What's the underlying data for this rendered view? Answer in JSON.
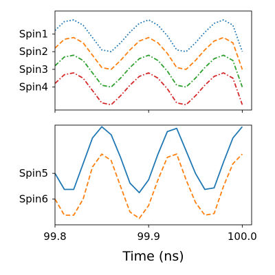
{
  "chart_data": [
    {
      "type": "line",
      "panel": "top",
      "xlim": [
        99.8,
        100.01
      ],
      "ylim": [
        -5.3,
        0.3
      ],
      "x": [
        99.8,
        99.81,
        99.82,
        99.83,
        99.84,
        99.85,
        99.86,
        99.87,
        99.88,
        99.89,
        99.9,
        99.91,
        99.92,
        99.93,
        99.94,
        99.95,
        99.96,
        99.97,
        99.98,
        99.99,
        100.0
      ],
      "ytick_labels": [
        "Spin1",
        "Spin2",
        "Spin3",
        "Spin4"
      ],
      "ytick_values": [
        -1,
        -2,
        -3,
        -4
      ],
      "series": [
        {
          "label": "Spin1",
          "color": "#1f77b4",
          "dash": "dotted",
          "values": [
            -0.8,
            -0.3,
            -0.2,
            -0.5,
            -1.2,
            -1.9,
            -2.0,
            -1.5,
            -0.9,
            -0.4,
            -0.2,
            -0.5,
            -1.1,
            -1.9,
            -2.0,
            -1.5,
            -0.9,
            -0.4,
            -0.2,
            -0.5,
            -2.0
          ]
        },
        {
          "label": "Spin2",
          "color": "#ff7f0e",
          "dash": "dashed",
          "values": [
            -1.8,
            -1.3,
            -1.2,
            -1.5,
            -2.2,
            -2.9,
            -3.0,
            -2.5,
            -1.9,
            -1.4,
            -1.2,
            -1.5,
            -2.1,
            -2.9,
            -3.0,
            -2.5,
            -1.9,
            -1.4,
            -1.2,
            -1.5,
            -3.0
          ]
        },
        {
          "label": "Spin3",
          "color": "#2ca02c",
          "dash": "dashdot",
          "values": [
            -2.8,
            -2.3,
            -2.2,
            -2.5,
            -3.2,
            -3.9,
            -4.0,
            -3.5,
            -2.9,
            -2.4,
            -2.2,
            -2.5,
            -3.1,
            -3.9,
            -4.0,
            -3.5,
            -2.9,
            -2.4,
            -2.2,
            -2.5,
            -4.0
          ]
        },
        {
          "label": "Spin4",
          "color": "#d62728",
          "dash": "dashdot",
          "values": [
            -3.8,
            -3.3,
            -3.2,
            -3.5,
            -4.2,
            -4.9,
            -5.0,
            -4.5,
            -3.9,
            -3.4,
            -3.2,
            -3.5,
            -4.1,
            -4.9,
            -5.0,
            -4.5,
            -3.9,
            -3.4,
            -3.2,
            -3.5,
            -5.0
          ]
        }
      ]
    },
    {
      "type": "line",
      "panel": "bottom",
      "xlim": [
        99.8,
        100.01
      ],
      "ylim": [
        -1.6,
        1.5
      ],
      "xlabel": "Time (ns)",
      "xtick_labels": [
        "99.8",
        "99.9",
        "100.0"
      ],
      "xtick_values": [
        99.8,
        99.9,
        100.0
      ],
      "x": [
        99.8,
        99.81,
        99.82,
        99.83,
        99.84,
        99.85,
        99.86,
        99.87,
        99.88,
        99.89,
        99.9,
        99.91,
        99.92,
        99.93,
        99.94,
        99.95,
        99.96,
        99.97,
        99.98,
        99.99,
        100.0
      ],
      "ytick_labels": [
        "Spin5",
        "Spin6"
      ],
      "ytick_values": [
        0,
        -0.8
      ],
      "series": [
        {
          "label": "Spin5",
          "color": "#1f77b4",
          "dash": "solid",
          "values": [
            0.0,
            -0.5,
            -0.5,
            0.3,
            1.1,
            1.45,
            1.2,
            0.5,
            -0.3,
            -0.6,
            -0.2,
            0.6,
            1.3,
            1.4,
            0.7,
            0.0,
            -0.5,
            -0.45,
            0.35,
            1.1,
            1.45
          ]
        },
        {
          "label": "Spin6",
          "color": "#ff7f0e",
          "dash": "dashed",
          "values": [
            -0.8,
            -1.3,
            -1.3,
            -0.8,
            0.2,
            0.6,
            0.4,
            -0.4,
            -1.2,
            -1.4,
            -1.0,
            -0.2,
            0.5,
            0.6,
            -0.2,
            -0.9,
            -1.3,
            -1.25,
            -0.4,
            0.3,
            0.6
          ]
        }
      ]
    }
  ]
}
